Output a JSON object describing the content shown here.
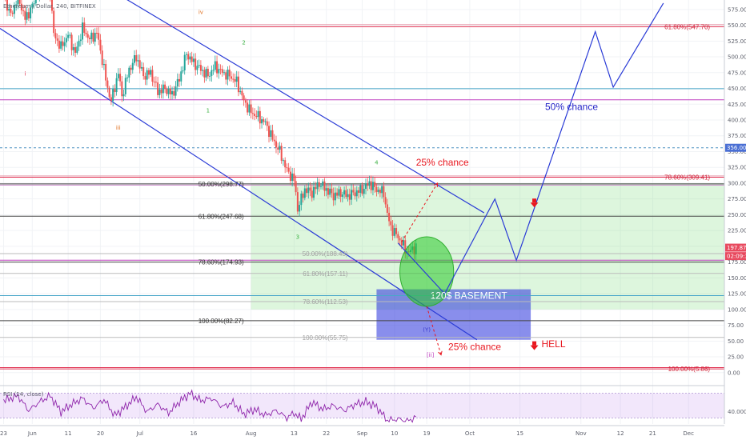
{
  "chart_data": {
    "type": "candlestick",
    "title": "Ethereum / Dollar, 240, BITFINEX",
    "y_axis": {
      "ticks": [
        575,
        550,
        525,
        500,
        475,
        450,
        425,
        400,
        375,
        350,
        325,
        300,
        275,
        250,
        225,
        200,
        175,
        150,
        125,
        100,
        75,
        50,
        25,
        0
      ],
      "ylim": [
        -18,
        590
      ],
      "price_tags": [
        {
          "label": "356.00",
          "value": 356,
          "bg": "#4a6fd4"
        },
        {
          "label": "197.87",
          "value": 197.87,
          "bg": "#e84a5f"
        },
        {
          "label": "02:09:38",
          "value": 184.5,
          "bg": "#e84a5f"
        }
      ]
    },
    "x_axis": {
      "ticks": [
        "23",
        "Jun",
        "11",
        "20",
        "Jul",
        "16",
        "Aug",
        "13",
        "22",
        "Sep",
        "10",
        "19",
        "Oct",
        "15",
        "Nov",
        "12",
        "21",
        "Dec"
      ],
      "tick_days": [
        -8,
        0,
        10,
        19,
        30,
        45,
        61,
        73,
        82,
        92,
        101,
        110,
        122,
        136,
        153,
        164,
        173,
        183
      ],
      "range_days": [
        -9,
        193
      ]
    },
    "price_series": [
      {
        "day": -8,
        "price": 598
      },
      {
        "day": -6,
        "price": 565
      },
      {
        "day": -4,
        "price": 596
      },
      {
        "day": -2,
        "price": 560
      },
      {
        "day": 0,
        "price": 580
      },
      {
        "day": 2,
        "price": 610
      },
      {
        "day": 4,
        "price": 630
      },
      {
        "day": 5,
        "price": 605
      },
      {
        "day": 6,
        "price": 535
      },
      {
        "day": 8,
        "price": 515
      },
      {
        "day": 10,
        "price": 535
      },
      {
        "day": 12,
        "price": 505
      },
      {
        "day": 14,
        "price": 545
      },
      {
        "day": 16,
        "price": 528
      },
      {
        "day": 18,
        "price": 538
      },
      {
        "day": 19,
        "price": 510
      },
      {
        "day": 21,
        "price": 450
      },
      {
        "day": 22,
        "price": 430
      },
      {
        "day": 24,
        "price": 475
      },
      {
        "day": 25,
        "price": 438
      },
      {
        "day": 27,
        "price": 480
      },
      {
        "day": 29,
        "price": 500
      },
      {
        "day": 31,
        "price": 470
      },
      {
        "day": 33,
        "price": 475
      },
      {
        "day": 35,
        "price": 445
      },
      {
        "day": 37,
        "price": 450
      },
      {
        "day": 39,
        "price": 440
      },
      {
        "day": 41,
        "price": 465
      },
      {
        "day": 43,
        "price": 505
      },
      {
        "day": 45,
        "price": 490
      },
      {
        "day": 47,
        "price": 480
      },
      {
        "day": 49,
        "price": 470
      },
      {
        "day": 51,
        "price": 485
      },
      {
        "day": 53,
        "price": 475
      },
      {
        "day": 55,
        "price": 470
      },
      {
        "day": 57,
        "price": 460
      },
      {
        "day": 59,
        "price": 430
      },
      {
        "day": 61,
        "price": 412
      },
      {
        "day": 63,
        "price": 405
      },
      {
        "day": 65,
        "price": 395
      },
      {
        "day": 67,
        "price": 370
      },
      {
        "day": 69,
        "price": 350
      },
      {
        "day": 71,
        "price": 320
      },
      {
        "day": 73,
        "price": 305
      },
      {
        "day": 74,
        "price": 260
      },
      {
        "day": 76,
        "price": 290
      },
      {
        "day": 78,
        "price": 285
      },
      {
        "day": 80,
        "price": 300
      },
      {
        "day": 82,
        "price": 290
      },
      {
        "day": 84,
        "price": 280
      },
      {
        "day": 86,
        "price": 285
      },
      {
        "day": 88,
        "price": 280
      },
      {
        "day": 90,
        "price": 285
      },
      {
        "day": 92,
        "price": 290
      },
      {
        "day": 94,
        "price": 300
      },
      {
        "day": 96,
        "price": 290
      },
      {
        "day": 98,
        "price": 285
      },
      {
        "day": 99,
        "price": 250
      },
      {
        "day": 100,
        "price": 230
      },
      {
        "day": 101,
        "price": 222
      },
      {
        "day": 102,
        "price": 215
      },
      {
        "day": 103,
        "price": 205
      },
      {
        "day": 104,
        "price": 195
      },
      {
        "day": 105,
        "price": 190
      },
      {
        "day": 106,
        "price": 196
      },
      {
        "day": 107,
        "price": 198
      }
    ],
    "hlines": [
      {
        "price": 551,
        "color": "#e8a0b0"
      },
      {
        "price": 547.7,
        "color": "#e03050"
      },
      {
        "price": 449.5,
        "color": "#4aa7c9"
      },
      {
        "price": 432,
        "color": "#c040c0"
      },
      {
        "price": 356,
        "color": "#4a8fc0",
        "dash": true
      },
      {
        "price": 311.5,
        "color": "#e8a0b0"
      },
      {
        "price": 309.41,
        "color": "#e03050"
      },
      {
        "price": 298.77,
        "color": "#444444"
      },
      {
        "price": 297,
        "color": "#cc88cc"
      },
      {
        "price": 247.68,
        "color": "#444444"
      },
      {
        "price": 188.43,
        "color": "#bbbbbb"
      },
      {
        "price": 178,
        "color": "#c040c0"
      },
      {
        "price": 174.93,
        "color": "#444444"
      },
      {
        "price": 157.11,
        "color": "#bbbbbb"
      },
      {
        "price": 122,
        "color": "#4aa7c9"
      },
      {
        "price": 112.53,
        "color": "#bbbbbb"
      },
      {
        "price": 82.27,
        "color": "#444444"
      },
      {
        "price": 55.75,
        "color": "#bbbbbb"
      },
      {
        "price": 8,
        "color": "#e03050"
      },
      {
        "price": 5.86,
        "color": "#e03050"
      }
    ],
    "fib_labels": [
      {
        "text": "61.80%(547.70)",
        "day": 189,
        "price": 547.7,
        "style": "red",
        "anchor": "end"
      },
      {
        "text": "78.60%(309.41)",
        "day": 189,
        "price": 309.41,
        "style": "red",
        "anchor": "end"
      },
      {
        "text": "100.00%(5.86)",
        "day": 189,
        "price": 5.86,
        "style": "red",
        "anchor": "end"
      },
      {
        "text": "50.00%(298.77)",
        "day": 59,
        "price": 298.77,
        "style": "dark",
        "anchor": "end"
      },
      {
        "text": "61.80%(247.68)",
        "day": 59,
        "price": 247.68,
        "style": "dark",
        "anchor": "end"
      },
      {
        "text": "78.60%(174.93)",
        "day": 59,
        "price": 174.93,
        "style": "dark",
        "anchor": "end"
      },
      {
        "text": "100.00%(82.27)",
        "day": 59,
        "price": 82.27,
        "style": "dark",
        "anchor": "end"
      },
      {
        "text": "50.00%(188.43)",
        "day": 88,
        "price": 188.43,
        "style": "grey",
        "anchor": "end"
      },
      {
        "text": "61.80%(157.11)",
        "day": 88,
        "price": 157.11,
        "style": "grey",
        "anchor": "end"
      },
      {
        "text": "78.60%(112.53)",
        "day": 88,
        "price": 112.53,
        "style": "grey",
        "anchor": "end"
      },
      {
        "text": "100.00%(55.75)",
        "day": 88,
        "price": 55.75,
        "style": "grey",
        "anchor": "end"
      }
    ],
    "zones": [
      {
        "name": "green-retracement-zone",
        "day0": 61,
        "day1": 193,
        "p0": 300,
        "p1": 100,
        "fill": "rgba(120, 220, 120, 0.25)"
      },
      {
        "name": "basement-zone",
        "day0": 96,
        "day1": 139,
        "p0": 132,
        "p1": 52,
        "fill": "rgba(40, 50, 220, 0.55)"
      }
    ],
    "channel_lines": [
      {
        "p": [
          [
            26,
            592
          ],
          [
            126,
            253
          ]
        ]
      },
      {
        "p": [
          [
            -9,
            545
          ],
          [
            124,
            52
          ]
        ]
      }
    ],
    "projection": [
      [
        102,
        205
      ],
      [
        115,
        125
      ],
      [
        129,
        275
      ],
      [
        135,
        178
      ],
      [
        157,
        540
      ],
      [
        162,
        452
      ],
      [
        176,
        585
      ]
    ],
    "dashed_arrows": [
      {
        "from": [
          103,
          207
        ],
        "to": [
          113,
          300
        ]
      },
      {
        "from": [
          110,
          105
        ],
        "to": [
          114,
          28
        ]
      }
    ],
    "green_circle": {
      "day": 110,
      "price": 160,
      "r_days": 7.5,
      "r_price": 55
    },
    "annotations": [
      {
        "text": "25% chance",
        "day": 107,
        "price": 328,
        "style": "red"
      },
      {
        "text": "50% chance",
        "day": 143,
        "price": 416,
        "style": "blue"
      },
      {
        "text": "25% chance",
        "day": 116,
        "price": 36,
        "style": "red"
      },
      {
        "text": "HELL",
        "day": 142,
        "price": 40,
        "style": "red"
      },
      {
        "text": "120$    BASEMENT",
        "day": 111,
        "price": 117,
        "style": "white"
      }
    ],
    "red_arrows": [
      {
        "day": 140,
        "price": 268
      },
      {
        "day": 140,
        "price": 42
      }
    ],
    "wave_labels": [
      {
        "text": "i",
        "day": -2,
        "price": 470,
        "color": "#e03050"
      },
      {
        "text": "iii",
        "day": 24,
        "price": 385,
        "color": "#e07020"
      },
      {
        "text": "iv",
        "day": 47,
        "price": 568,
        "color": "#e07020"
      },
      {
        "text": "2",
        "day": 59,
        "price": 520,
        "color": "#3cb043"
      },
      {
        "text": "1",
        "day": 49,
        "price": 412,
        "color": "#3cb043"
      },
      {
        "text": "4",
        "day": 96,
        "price": 330,
        "color": "#3cb043"
      },
      {
        "text": "3",
        "day": 74,
        "price": 212,
        "color": "#3cb043"
      },
      {
        "text": "5",
        "day": 112,
        "price": 120,
        "color": "#3cb043"
      },
      {
        "text": "(Y)",
        "day": 110,
        "price": 65,
        "color": "#3a3ad0"
      },
      {
        "text": "[ii]",
        "day": 111,
        "price": 25,
        "color": "#c040c0"
      }
    ],
    "rsi": {
      "label": "RSI (14, close)",
      "level_label": "40.0000",
      "ylim": [
        20,
        80
      ],
      "band": [
        30,
        70
      ],
      "values": [
        {
          "day": -8,
          "v": 58
        },
        {
          "day": -4,
          "v": 66
        },
        {
          "day": -1,
          "v": 42
        },
        {
          "day": 2,
          "v": 56
        },
        {
          "day": 5,
          "v": 66
        },
        {
          "day": 8,
          "v": 40
        },
        {
          "day": 11,
          "v": 52
        },
        {
          "day": 14,
          "v": 62
        },
        {
          "day": 17,
          "v": 46
        },
        {
          "day": 20,
          "v": 60
        },
        {
          "day": 23,
          "v": 34
        },
        {
          "day": 26,
          "v": 48
        },
        {
          "day": 29,
          "v": 64
        },
        {
          "day": 32,
          "v": 40
        },
        {
          "day": 35,
          "v": 52
        },
        {
          "day": 38,
          "v": 38
        },
        {
          "day": 41,
          "v": 56
        },
        {
          "day": 44,
          "v": 70
        },
        {
          "day": 47,
          "v": 58
        },
        {
          "day": 50,
          "v": 62
        },
        {
          "day": 53,
          "v": 48
        },
        {
          "day": 56,
          "v": 55
        },
        {
          "day": 59,
          "v": 36
        },
        {
          "day": 62,
          "v": 44
        },
        {
          "day": 65,
          "v": 34
        },
        {
          "day": 68,
          "v": 42
        },
        {
          "day": 71,
          "v": 30
        },
        {
          "day": 73,
          "v": 38
        },
        {
          "day": 75,
          "v": 28
        },
        {
          "day": 78,
          "v": 56
        },
        {
          "day": 81,
          "v": 44
        },
        {
          "day": 84,
          "v": 50
        },
        {
          "day": 87,
          "v": 42
        },
        {
          "day": 90,
          "v": 52
        },
        {
          "day": 93,
          "v": 56
        },
        {
          "day": 96,
          "v": 48
        },
        {
          "day": 99,
          "v": 26
        },
        {
          "day": 102,
          "v": 28
        },
        {
          "day": 105,
          "v": 25
        },
        {
          "day": 107,
          "v": 32
        }
      ]
    }
  }
}
